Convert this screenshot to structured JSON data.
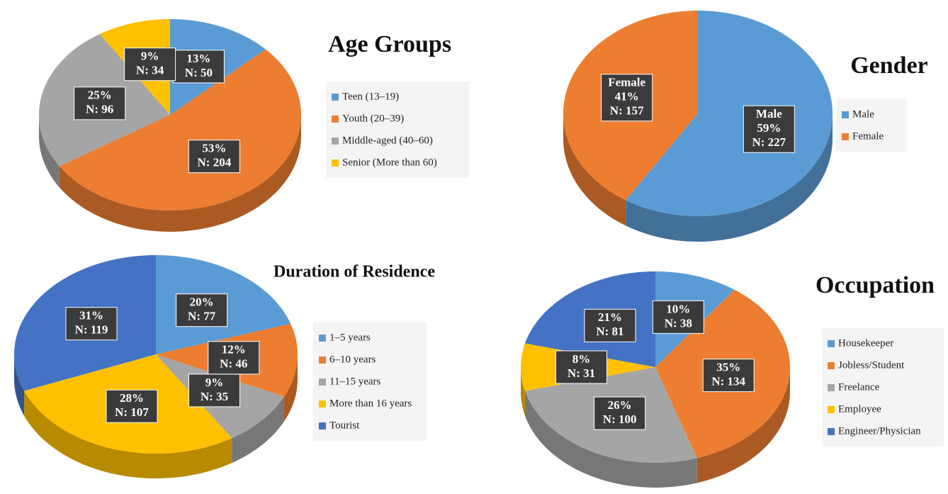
{
  "chart_data": [
    {
      "type": "pie",
      "title": "Age Groups",
      "categories": [
        "Teen (13–19)",
        "Youth (20–39)",
        "Middle-aged (40–60)",
        "Senior (More than 60)"
      ],
      "values": [
        13,
        53,
        25,
        9
      ],
      "value_labels": [
        "13%",
        "53%",
        "25%",
        "9%"
      ],
      "count_labels": [
        "N: 50",
        "N: 204",
        "N: 96",
        "N: 34"
      ],
      "colors": [
        "#5b9bd5",
        "#ed7d31",
        "#a5a5a5",
        "#ffc000"
      ],
      "label_names": false
    },
    {
      "type": "pie",
      "title": "Gender",
      "categories": [
        "Male",
        "Female"
      ],
      "values": [
        59,
        41
      ],
      "value_labels": [
        "59%",
        "41%"
      ],
      "count_labels": [
        "N: 227",
        "N: 157"
      ],
      "colors": [
        "#5b9bd5",
        "#ed7d31"
      ],
      "label_names": true
    },
    {
      "type": "pie",
      "title": "Duration of Residence",
      "categories": [
        "1–5 years",
        "6–10 years",
        "11–15 years",
        "More than 16 years",
        "Tourist"
      ],
      "values": [
        20,
        12,
        9,
        28,
        31
      ],
      "value_labels": [
        "20%",
        "12%",
        "9%",
        "28%",
        "31%"
      ],
      "count_labels": [
        "N: 77",
        "N: 46",
        "N: 35",
        "N: 107",
        "N: 119"
      ],
      "colors": [
        "#5b9bd5",
        "#ed7d31",
        "#a5a5a5",
        "#ffc000",
        "#4472c4"
      ],
      "label_names": false
    },
    {
      "type": "pie",
      "title": "Occupation",
      "categories": [
        "Housekeeper",
        "Jobless/Student",
        "Freelance",
        "Employee",
        "Engineer/Physician"
      ],
      "values": [
        10,
        35,
        26,
        8,
        21
      ],
      "value_labels": [
        "10%",
        "35%",
        "26%",
        "8%",
        "21%"
      ],
      "count_labels": [
        "N: 38",
        "N: 134",
        "N: 100",
        "N: 31",
        "N: 81"
      ],
      "colors": [
        "#5b9bd5",
        "#ed7d31",
        "#a5a5a5",
        "#ffc000",
        "#4472c4"
      ],
      "label_names": false
    }
  ]
}
